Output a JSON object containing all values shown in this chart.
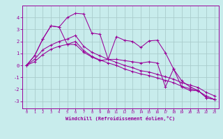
{
  "xlabel": "Windchill (Refroidissement éolien,°C)",
  "xlim": [
    -0.5,
    23.5
  ],
  "ylim": [
    -3.6,
    5.0
  ],
  "xticks": [
    0,
    1,
    2,
    3,
    4,
    5,
    6,
    7,
    8,
    9,
    10,
    11,
    12,
    13,
    14,
    15,
    16,
    17,
    18,
    19,
    20,
    21,
    22,
    23
  ],
  "yticks": [
    -3,
    -2,
    -1,
    0,
    1,
    2,
    3,
    4
  ],
  "bg_color": "#c8ecec",
  "line_color": "#990099",
  "grid_color": "#aacccc",
  "series": [
    [
      0.0,
      0.8,
      2.2,
      3.3,
      3.2,
      4.0,
      4.35,
      4.3,
      2.7,
      2.6,
      0.5,
      2.4,
      2.1,
      2.0,
      1.5,
      2.05,
      2.1,
      1.05,
      -0.3,
      -1.8,
      -2.1,
      -2.1,
      -2.7,
      -2.85
    ],
    [
      0.0,
      0.5,
      1.3,
      1.7,
      2.0,
      2.2,
      2.5,
      1.6,
      1.1,
      0.8,
      0.5,
      0.25,
      0.0,
      -0.2,
      -0.45,
      -0.55,
      -0.75,
      -0.95,
      -1.15,
      -1.45,
      -1.65,
      -1.85,
      -2.25,
      -2.55
    ],
    [
      0.0,
      0.3,
      0.9,
      1.35,
      1.6,
      1.75,
      2.0,
      1.25,
      0.75,
      0.45,
      0.2,
      0.0,
      -0.3,
      -0.52,
      -0.72,
      -0.85,
      -1.05,
      -1.25,
      -1.45,
      -1.75,
      -1.95,
      -2.15,
      -2.55,
      -2.85
    ],
    [
      0.0,
      0.8,
      2.2,
      3.3,
      3.2,
      1.75,
      1.75,
      1.1,
      0.7,
      0.4,
      0.5,
      0.5,
      0.4,
      0.3,
      0.2,
      0.3,
      0.2,
      -1.8,
      -0.3,
      -1.3,
      -1.8,
      -2.1,
      -2.7,
      -2.85
    ]
  ]
}
